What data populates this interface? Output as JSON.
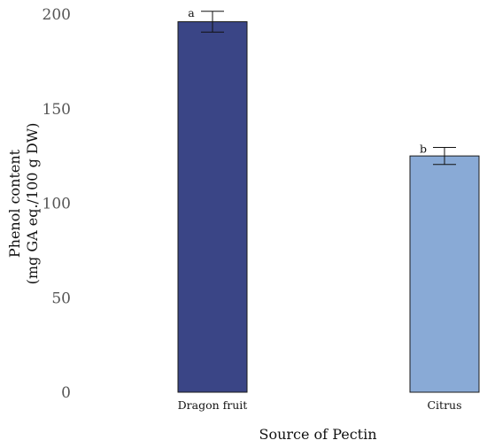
{
  "chart_data": {
    "type": "bar",
    "categories": [
      "Dragon fruit",
      "Citrus"
    ],
    "values": [
      196,
      125
    ],
    "errors": [
      5.5,
      4.5
    ],
    "significance": [
      "a",
      "b"
    ],
    "colors": [
      "#3a4586",
      "#89aad6"
    ],
    "title": "",
    "xlabel": "Source of Pectin",
    "ylabel_line1": "Phenol content",
    "ylabel_line2": "(mg GA eq./100 g DW)",
    "ylim": [
      0,
      200
    ],
    "yticks": [
      0,
      50,
      100,
      150,
      200
    ],
    "grid": false,
    "legend": "none"
  }
}
